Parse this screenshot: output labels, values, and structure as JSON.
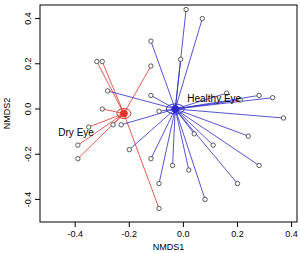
{
  "chart_data": {
    "type": "scatter",
    "x_label": "NMDS1",
    "y_label": "NMDS2",
    "xlim": [
      -0.53,
      0.42
    ],
    "ylim": [
      -0.5,
      0.46
    ],
    "xticks": [
      -0.4,
      -0.2,
      {
        "value": 0,
        "label": "0.0"
      },
      0.2,
      0.4
    ],
    "yticks": [
      -0.4,
      -0.2,
      {
        "value": 0,
        "label": "0.0"
      },
      0.2,
      0.4
    ],
    "marker": "circle",
    "series": [
      {
        "name": "Dry Eye",
        "color": "#e0352c",
        "centroid": [
          -0.22,
          -0.02
        ],
        "x": [
          -0.32,
          -0.3,
          -0.12,
          -0.39,
          -0.39,
          -0.35,
          -0.3,
          -0.09,
          -0.26
        ],
        "values": [
          0.21,
          0.21,
          0.19,
          -0.16,
          -0.22,
          -0.08,
          0.0,
          -0.44,
          -0.07
        ]
      },
      {
        "name": "Healthy Eye",
        "color": "#2a2acc",
        "centroid": [
          -0.03,
          0.0
        ],
        "x": [
          0.01,
          0.07,
          -0.12,
          -0.01,
          -0.28,
          -0.12,
          -0.09,
          -0.2,
          -0.09,
          -0.04,
          0.04,
          0.11,
          0.16,
          0.21,
          0.28,
          0.33,
          0.37,
          0.24,
          0.28,
          0.2,
          0.08,
          0.02,
          -0.12,
          -0.23
        ],
        "values": [
          0.44,
          0.4,
          0.3,
          0.22,
          0.08,
          0.06,
          -0.01,
          -0.18,
          -0.33,
          -0.25,
          -0.11,
          -0.16,
          0.07,
          0.04,
          0.06,
          0.05,
          -0.04,
          -0.12,
          -0.25,
          -0.33,
          -0.4,
          -0.27,
          -0.22,
          -0.07
        ]
      }
    ]
  }
}
